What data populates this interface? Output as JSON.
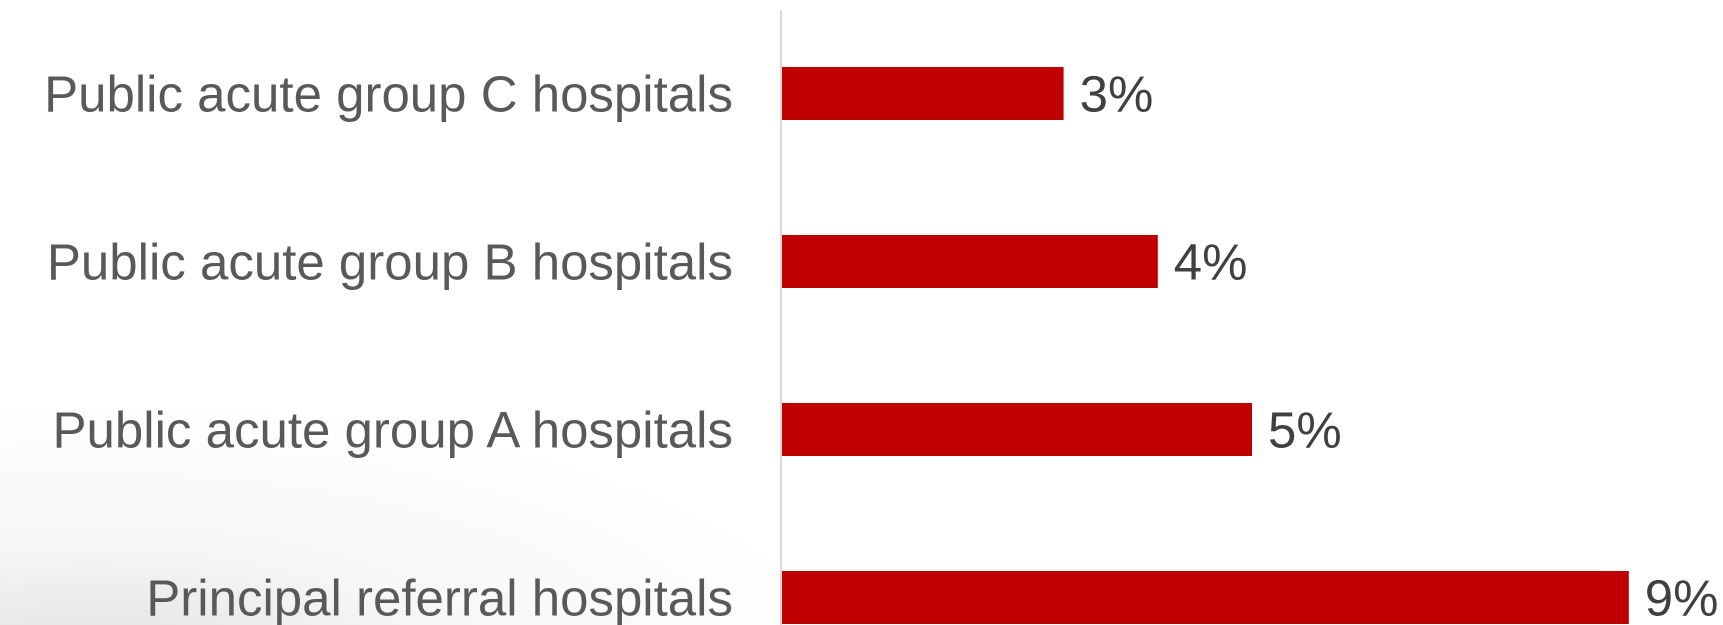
{
  "chart_data": {
    "type": "bar",
    "orientation": "horizontal",
    "categories": [
      "Public acute group C hospitals",
      "Public acute group B hospitals",
      "Public acute group A hospitals",
      "Principal referral hospitals"
    ],
    "values": [
      3,
      4,
      5,
      9
    ],
    "value_labels": [
      "3%",
      "4%",
      "5%",
      "9%"
    ],
    "unit": "%",
    "xlim": [
      0,
      10
    ],
    "grid": false,
    "legend": "none",
    "colors": {
      "bar": "#c00000",
      "category_text": "#595959",
      "value_text": "#404040",
      "axis": "#d9d9d9"
    }
  }
}
